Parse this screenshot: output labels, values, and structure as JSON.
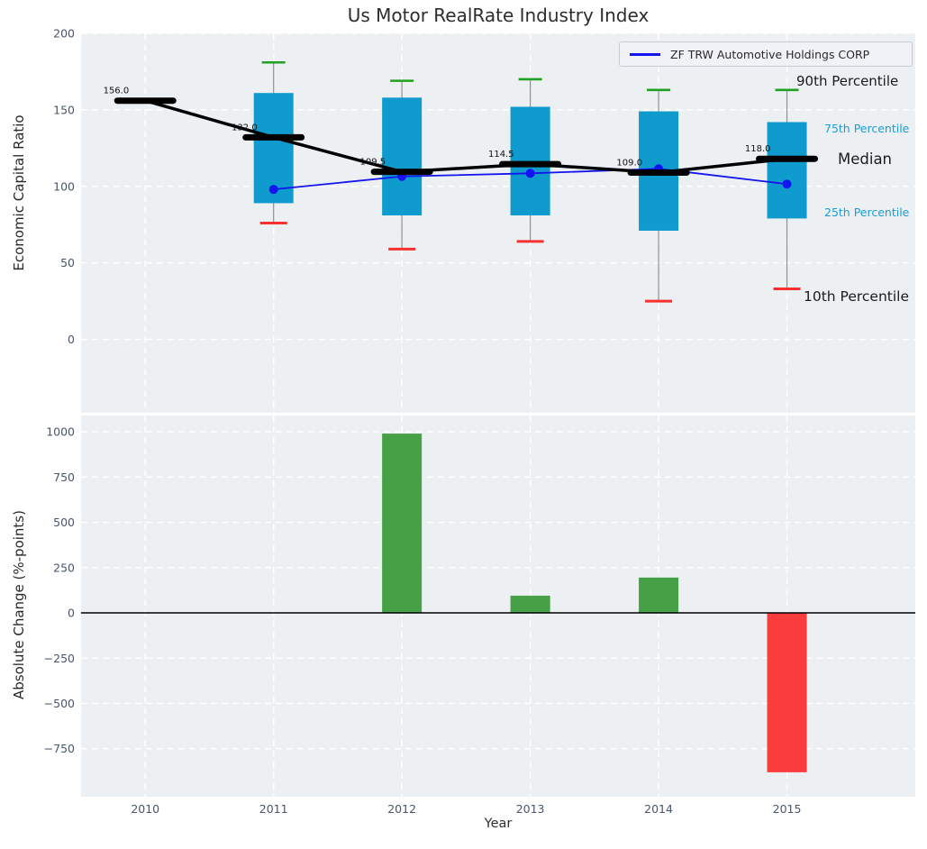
{
  "title": "Us Motor RealRate Industry Index",
  "legend": {
    "series_label": "ZF TRW Automotive Holdings CORP"
  },
  "axes": {
    "top": {
      "ylabel": "Economic Capital Ratio"
    },
    "bottom": {
      "ylabel": "Absolute Change (%-points)",
      "xlabel": "Year"
    }
  },
  "percentile_labels": {
    "p90": "90th Percentile",
    "p75": "75th Percentile",
    "median": "Median",
    "p25": "25th Percentile",
    "p10": "10th Percentile"
  },
  "colors": {
    "box_fill": "#0f9bce",
    "median_line": "#000000",
    "company_line": "#1414ee",
    "cap_high_green": "#21a021",
    "cap_low_red": "#f93030",
    "bar_positive": "#46a046",
    "bar_negative": "#fb3c3c",
    "grid": "#ffffff",
    "axes_background": "#ecf0f2",
    "tick_text": "#47566e",
    "annotation_cyan": "#1b9cd3",
    "whisker": "#909090"
  },
  "chart_data": [
    {
      "type": "box",
      "title": "Us Motor RealRate Industry Index",
      "ylabel": "Economic Capital Ratio",
      "x": [
        2010,
        2011,
        2012,
        2013,
        2014,
        2015
      ],
      "xlim": [
        2009.5,
        2016.0
      ],
      "ylim": [
        -48,
        200
      ],
      "yticks": [
        0,
        50,
        100,
        150,
        200
      ],
      "grid": true,
      "legend_position": "upper right",
      "medians": [
        156.0,
        132.0,
        109.5,
        114.5,
        109.0,
        118.0
      ],
      "median_labels": [
        "156.0",
        "132.0",
        "109.5",
        "114.5",
        "109.0",
        "118.0"
      ],
      "boxes": [
        null,
        {
          "p10": 76,
          "p25": 89,
          "p75": 161,
          "p90": 181
        },
        {
          "p10": 59,
          "p25": 81,
          "p75": 158,
          "p90": 169
        },
        {
          "p10": 64,
          "p25": 81,
          "p75": 152,
          "p90": 170
        },
        {
          "p10": 25,
          "p25": 71,
          "p75": 149,
          "p90": 163
        },
        {
          "p10": 33,
          "p25": 79,
          "p75": 142,
          "p90": 163
        }
      ],
      "series": [
        {
          "name": "ZF TRW Automotive Holdings CORP",
          "x": [
            2011,
            2012,
            2013,
            2014,
            2015
          ],
          "y": [
            98,
            106.5,
            108.5,
            111.5,
            101.5
          ]
        }
      ]
    },
    {
      "type": "bar",
      "ylabel": "Absolute Change (%-points)",
      "xlabel": "Year",
      "categories": [
        2010,
        2011,
        2012,
        2013,
        2014,
        2015
      ],
      "xlim": [
        2009.5,
        2016.0
      ],
      "ylim": [
        -1015,
        1090
      ],
      "yticks": [
        1000,
        750,
        500,
        250,
        0,
        -250,
        -500,
        -750
      ],
      "grid": true,
      "bars": [
        {
          "x": 2012,
          "value": 990,
          "color": "positive"
        },
        {
          "x": 2013,
          "value": 95,
          "color": "positive"
        },
        {
          "x": 2014,
          "value": 195,
          "color": "positive"
        },
        {
          "x": 2015,
          "value": -880,
          "color": "negative"
        }
      ]
    }
  ]
}
